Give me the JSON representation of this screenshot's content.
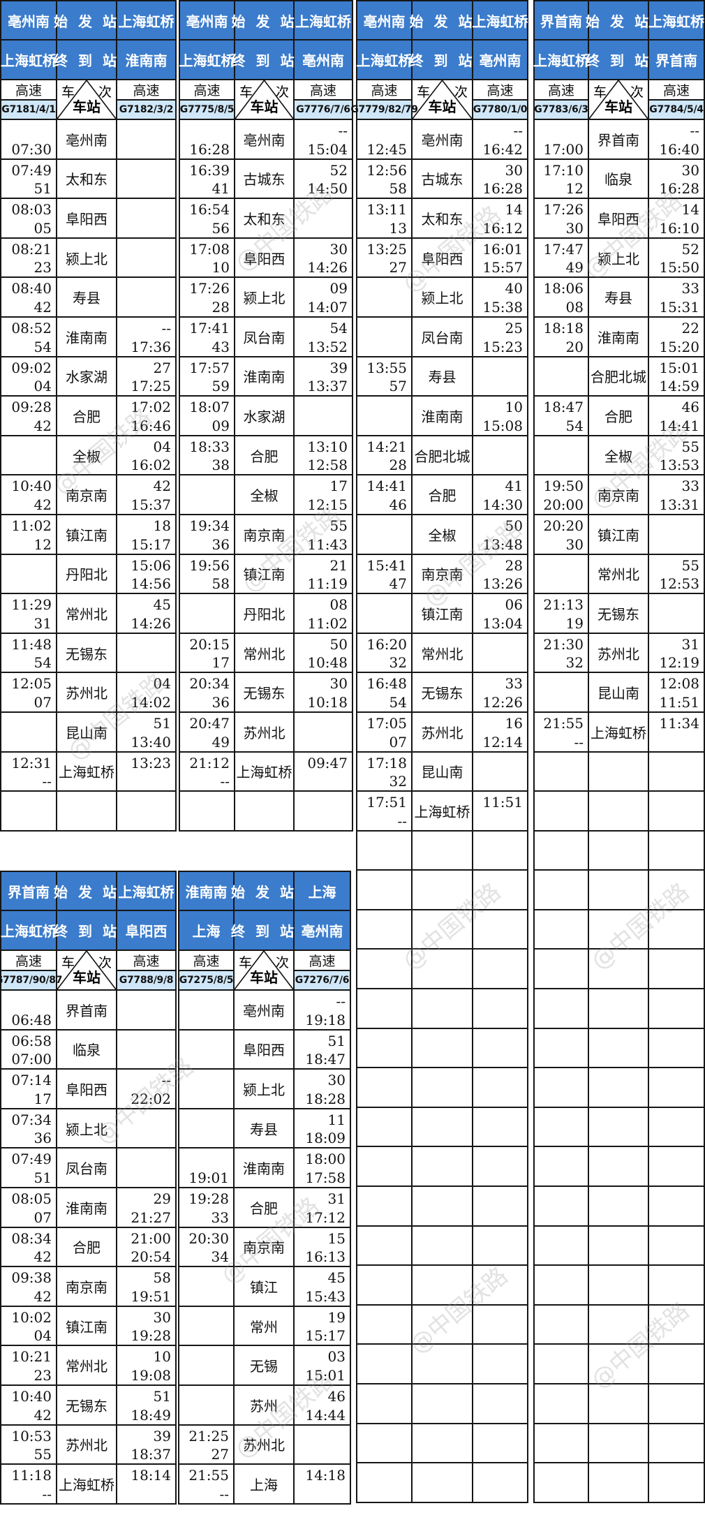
{
  "watermark": "@中国铁路",
  "labels": {
    "start": "始 发 站",
    "end": "终 到 站",
    "car": "车",
    "ci": "次",
    "station": "车站"
  },
  "tables": [
    {
      "origin_left": "亳州南",
      "origin_right": "上海虹桥",
      "dest_left": "上海虹桥",
      "dest_right": "淮南南",
      "type_left": "高速",
      "type_right": "高速",
      "train_left": "G7181/4/1",
      "train_right": "G7182/3/2",
      "rows": [
        {
          "station": "亳州南",
          "left": [
            "",
            "07:30"
          ],
          "right": [
            "",
            ""
          ]
        },
        {
          "station": "太和东",
          "left": [
            "07:49",
            "51"
          ],
          "right": [
            "",
            ""
          ]
        },
        {
          "station": "阜阳西",
          "left": [
            "08:03",
            "05"
          ],
          "right": [
            "",
            ""
          ]
        },
        {
          "station": "颍上北",
          "left": [
            "08:21",
            "23"
          ],
          "right": [
            "",
            ""
          ]
        },
        {
          "station": "寿县",
          "left": [
            "08:40",
            "42"
          ],
          "right": [
            "",
            ""
          ]
        },
        {
          "station": "淮南南",
          "left": [
            "08:52",
            "54"
          ],
          "right": [
            "--",
            "17:36"
          ]
        },
        {
          "station": "水家湖",
          "left": [
            "09:02",
            "04"
          ],
          "right": [
            "27",
            "17:25"
          ]
        },
        {
          "station": "合肥",
          "left": [
            "09:28",
            "42"
          ],
          "right": [
            "17:02",
            "16:46"
          ]
        },
        {
          "station": "全椒",
          "left": [
            "",
            ""
          ],
          "right": [
            "04",
            "16:02"
          ]
        },
        {
          "station": "南京南",
          "left": [
            "10:40",
            "42"
          ],
          "right": [
            "42",
            "15:37"
          ]
        },
        {
          "station": "镇江南",
          "left": [
            "11:02",
            "12"
          ],
          "right": [
            "18",
            "15:17"
          ]
        },
        {
          "station": "丹阳北",
          "left": [
            "",
            ""
          ],
          "right": [
            "15:06",
            "14:56"
          ]
        },
        {
          "station": "常州北",
          "left": [
            "11:29",
            "31"
          ],
          "right": [
            "45",
            "14:26"
          ]
        },
        {
          "station": "无锡东",
          "left": [
            "11:48",
            "54"
          ],
          "right": [
            "",
            ""
          ]
        },
        {
          "station": "苏州北",
          "left": [
            "12:05",
            "07"
          ],
          "right": [
            "04",
            "14:02"
          ]
        },
        {
          "station": "昆山南",
          "left": [
            "",
            ""
          ],
          "right": [
            "51",
            "13:40"
          ]
        },
        {
          "station": "上海虹桥",
          "left": [
            "12:31",
            "--"
          ],
          "right": [
            "13:23",
            ""
          ]
        }
      ]
    },
    {
      "origin_left": "亳州南",
      "origin_right": "上海虹桥",
      "dest_left": "上海虹桥",
      "dest_right": "亳州南",
      "type_left": "高速",
      "type_right": "高速",
      "train_left": "G7775/8/5",
      "train_right": "G7776/7/6",
      "rows": [
        {
          "station": "亳州南",
          "left": [
            "",
            "16:28"
          ],
          "right": [
            "--",
            "15:04"
          ]
        },
        {
          "station": "古城东",
          "left": [
            "16:39",
            "41"
          ],
          "right": [
            "52",
            "14:50"
          ]
        },
        {
          "station": "太和东",
          "left": [
            "16:54",
            "56"
          ],
          "right": [
            "",
            ""
          ]
        },
        {
          "station": "阜阳西",
          "left": [
            "17:08",
            "10"
          ],
          "right": [
            "30",
            "14:26"
          ]
        },
        {
          "station": "颍上北",
          "left": [
            "17:26",
            "28"
          ],
          "right": [
            "09",
            "14:07"
          ]
        },
        {
          "station": "凤台南",
          "left": [
            "17:41",
            "43"
          ],
          "right": [
            "54",
            "13:52"
          ]
        },
        {
          "station": "淮南南",
          "left": [
            "17:57",
            "59"
          ],
          "right": [
            "39",
            "13:37"
          ]
        },
        {
          "station": "水家湖",
          "left": [
            "18:07",
            "09"
          ],
          "right": [
            "",
            ""
          ]
        },
        {
          "station": "合肥",
          "left": [
            "18:33",
            "38"
          ],
          "right": [
            "13:10",
            "12:58"
          ]
        },
        {
          "station": "全椒",
          "left": [
            "",
            ""
          ],
          "right": [
            "17",
            "12:15"
          ]
        },
        {
          "station": "南京南",
          "left": [
            "19:34",
            "36"
          ],
          "right": [
            "55",
            "11:43"
          ]
        },
        {
          "station": "镇江南",
          "left": [
            "19:56",
            "58"
          ],
          "right": [
            "21",
            "11:19"
          ]
        },
        {
          "station": "丹阳北",
          "left": [
            "",
            ""
          ],
          "right": [
            "08",
            "11:02"
          ]
        },
        {
          "station": "常州北",
          "left": [
            "20:15",
            "17"
          ],
          "right": [
            "50",
            "10:48"
          ]
        },
        {
          "station": "无锡东",
          "left": [
            "20:34",
            "36"
          ],
          "right": [
            "30",
            "10:18"
          ]
        },
        {
          "station": "苏州北",
          "left": [
            "20:47",
            "49"
          ],
          "right": [
            "",
            ""
          ]
        },
        {
          "station": "上海虹桥",
          "left": [
            "21:12",
            "--"
          ],
          "right": [
            "09:47",
            ""
          ]
        }
      ]
    },
    {
      "origin_left": "亳州南",
      "origin_right": "上海虹桥",
      "dest_left": "上海虹桥",
      "dest_right": "亳州南",
      "type_left": "高速",
      "type_right": "高速",
      "train_left": "G7779/82/79",
      "train_right": "G7780/1/0",
      "rows": [
        {
          "station": "亳州南",
          "left": [
            "",
            "12:45"
          ],
          "right": [
            "--",
            "16:42"
          ]
        },
        {
          "station": "古城东",
          "left": [
            "12:56",
            "58"
          ],
          "right": [
            "30",
            "16:28"
          ]
        },
        {
          "station": "太和东",
          "left": [
            "13:11",
            "13"
          ],
          "right": [
            "14",
            "16:12"
          ]
        },
        {
          "station": "阜阳西",
          "left": [
            "13:25",
            "27"
          ],
          "right": [
            "16:01",
            "15:57"
          ]
        },
        {
          "station": "颍上北",
          "left": [
            "",
            ""
          ],
          "right": [
            "40",
            "15:38"
          ]
        },
        {
          "station": "凤台南",
          "left": [
            "",
            ""
          ],
          "right": [
            "25",
            "15:23"
          ]
        },
        {
          "station": "寿县",
          "left": [
            "13:55",
            "57"
          ],
          "right": [
            "",
            ""
          ]
        },
        {
          "station": "淮南南",
          "left": [
            "",
            ""
          ],
          "right": [
            "10",
            "15:08"
          ]
        },
        {
          "station": "合肥北城",
          "left": [
            "14:21",
            "28"
          ],
          "right": [
            "",
            ""
          ]
        },
        {
          "station": "合肥",
          "left": [
            "14:41",
            "46"
          ],
          "right": [
            "41",
            "14:30"
          ]
        },
        {
          "station": "全椒",
          "left": [
            "",
            ""
          ],
          "right": [
            "50",
            "13:48"
          ]
        },
        {
          "station": "南京南",
          "left": [
            "15:41",
            "47"
          ],
          "right": [
            "28",
            "13:26"
          ]
        },
        {
          "station": "镇江南",
          "left": [
            "",
            ""
          ],
          "right": [
            "06",
            "13:04"
          ]
        },
        {
          "station": "常州北",
          "left": [
            "16:20",
            "32"
          ],
          "right": [
            "",
            ""
          ]
        },
        {
          "station": "无锡东",
          "left": [
            "16:48",
            "54"
          ],
          "right": [
            "33",
            "12:26"
          ]
        },
        {
          "station": "苏州北",
          "left": [
            "17:05",
            "07"
          ],
          "right": [
            "16",
            "12:14"
          ]
        },
        {
          "station": "昆山南",
          "left": [
            "17:18",
            "32"
          ],
          "right": [
            "",
            ""
          ]
        },
        {
          "station": "上海虹桥",
          "left": [
            "17:51",
            "--"
          ],
          "right": [
            "11:51",
            ""
          ]
        }
      ]
    },
    {
      "origin_left": "界首南",
      "origin_right": "上海虹桥",
      "dest_left": "上海虹桥",
      "dest_right": "界首南",
      "type_left": "高速",
      "type_right": "高速",
      "train_left": "G7783/6/3",
      "train_right": "G7784/5/4",
      "rows": [
        {
          "station": "界首南",
          "left": [
            "",
            "17:00"
          ],
          "right": [
            "--",
            "16:40"
          ]
        },
        {
          "station": "临泉",
          "left": [
            "17:10",
            "12"
          ],
          "right": [
            "30",
            "16:28"
          ]
        },
        {
          "station": "阜阳西",
          "left": [
            "17:26",
            "30"
          ],
          "right": [
            "14",
            "16:10"
          ]
        },
        {
          "station": "颍上北",
          "left": [
            "17:47",
            "49"
          ],
          "right": [
            "52",
            "15:50"
          ]
        },
        {
          "station": "寿县",
          "left": [
            "18:06",
            "08"
          ],
          "right": [
            "33",
            "15:31"
          ]
        },
        {
          "station": "淮南南",
          "left": [
            "18:18",
            "20"
          ],
          "right": [
            "22",
            "15:20"
          ]
        },
        {
          "station": "合肥北城",
          "left": [
            "",
            ""
          ],
          "right": [
            "15:01",
            "14:59"
          ]
        },
        {
          "station": "合肥",
          "left": [
            "18:47",
            "54"
          ],
          "right": [
            "46",
            "14:41"
          ]
        },
        {
          "station": "全椒",
          "left": [
            "",
            ""
          ],
          "right": [
            "55",
            "13:53"
          ]
        },
        {
          "station": "南京南",
          "left": [
            "19:50",
            "20:00"
          ],
          "right": [
            "33",
            "13:31"
          ]
        },
        {
          "station": "镇江南",
          "left": [
            "20:20",
            "30"
          ],
          "right": [
            "",
            ""
          ]
        },
        {
          "station": "常州北",
          "left": [
            "",
            ""
          ],
          "right": [
            "55",
            "12:53"
          ]
        },
        {
          "station": "无锡东",
          "left": [
            "21:13",
            "19"
          ],
          "right": [
            "",
            ""
          ]
        },
        {
          "station": "苏州北",
          "left": [
            "21:30",
            "32"
          ],
          "right": [
            "31",
            "12:19"
          ]
        },
        {
          "station": "昆山南",
          "left": [
            "",
            ""
          ],
          "right": [
            "12:08",
            "11:51"
          ]
        },
        {
          "station": "上海虹桥",
          "left": [
            "21:55",
            "--"
          ],
          "right": [
            "11:34",
            ""
          ]
        }
      ]
    },
    {
      "origin_left": "界首南",
      "origin_right": "上海虹桥",
      "dest_left": "上海虹桥",
      "dest_right": "阜阳西",
      "type_left": "高速",
      "type_right": "高速",
      "train_left": "G7787/90/87",
      "train_right": "G7788/9/8",
      "rows": [
        {
          "station": "界首南",
          "left": [
            "",
            "06:48"
          ],
          "right": [
            "",
            ""
          ]
        },
        {
          "station": "临泉",
          "left": [
            "06:58",
            "07:00"
          ],
          "right": [
            "",
            ""
          ]
        },
        {
          "station": "阜阳西",
          "left": [
            "07:14",
            "17"
          ],
          "right": [
            "--",
            "22:02"
          ]
        },
        {
          "station": "颍上北",
          "left": [
            "07:34",
            "36"
          ],
          "right": [
            "",
            ""
          ]
        },
        {
          "station": "凤台南",
          "left": [
            "07:49",
            "51"
          ],
          "right": [
            "",
            ""
          ]
        },
        {
          "station": "淮南南",
          "left": [
            "08:05",
            "07"
          ],
          "right": [
            "29",
            "21:27"
          ]
        },
        {
          "station": "合肥",
          "left": [
            "08:34",
            "42"
          ],
          "right": [
            "21:00",
            "20:54"
          ]
        },
        {
          "station": "南京南",
          "left": [
            "09:38",
            "42"
          ],
          "right": [
            "58",
            "19:51"
          ]
        },
        {
          "station": "镇江南",
          "left": [
            "10:02",
            "04"
          ],
          "right": [
            "30",
            "19:28"
          ]
        },
        {
          "station": "常州北",
          "left": [
            "10:21",
            "23"
          ],
          "right": [
            "10",
            "19:08"
          ]
        },
        {
          "station": "无锡东",
          "left": [
            "10:40",
            "42"
          ],
          "right": [
            "51",
            "18:49"
          ]
        },
        {
          "station": "苏州北",
          "left": [
            "10:53",
            "55"
          ],
          "right": [
            "39",
            "18:37"
          ]
        },
        {
          "station": "上海虹桥",
          "left": [
            "11:18",
            "--"
          ],
          "right": [
            "18:14",
            ""
          ]
        }
      ]
    },
    {
      "origin_left": "淮南南",
      "origin_right": "上海",
      "dest_left": "上海",
      "dest_right": "亳州南",
      "type_left": "高速",
      "type_right": "高速",
      "train_left": "G7275/8/5",
      "train_right": "G7276/7/6",
      "rows": [
        {
          "station": "亳州南",
          "left": [
            "",
            ""
          ],
          "right": [
            "--",
            "19:18"
          ]
        },
        {
          "station": "阜阳西",
          "left": [
            "",
            ""
          ],
          "right": [
            "51",
            "18:47"
          ]
        },
        {
          "station": "颍上北",
          "left": [
            "",
            ""
          ],
          "right": [
            "30",
            "18:28"
          ]
        },
        {
          "station": "寿县",
          "left": [
            "",
            ""
          ],
          "right": [
            "11",
            "18:09"
          ]
        },
        {
          "station": "淮南南",
          "left": [
            "",
            "19:01"
          ],
          "right": [
            "18:00",
            "17:58"
          ]
        },
        {
          "station": "合肥",
          "left": [
            "19:28",
            "33"
          ],
          "right": [
            "31",
            "17:12"
          ]
        },
        {
          "station": "南京南",
          "left": [
            "20:30",
            "34"
          ],
          "right": [
            "15",
            "16:13"
          ]
        },
        {
          "station": "镇江",
          "left": [
            "",
            ""
          ],
          "right": [
            "45",
            "15:43"
          ]
        },
        {
          "station": "常州",
          "left": [
            "",
            ""
          ],
          "right": [
            "19",
            "15:17"
          ]
        },
        {
          "station": "无锡",
          "left": [
            "",
            ""
          ],
          "right": [
            "03",
            "15:01"
          ]
        },
        {
          "station": "苏州",
          "left": [
            "",
            ""
          ],
          "right": [
            "46",
            "14:44"
          ]
        },
        {
          "station": "苏州北",
          "left": [
            "21:25",
            "27"
          ],
          "right": [
            "",
            ""
          ]
        },
        {
          "station": "上海",
          "left": [
            "21:55",
            "--"
          ],
          "right": [
            "14:18",
            ""
          ]
        }
      ]
    }
  ]
}
